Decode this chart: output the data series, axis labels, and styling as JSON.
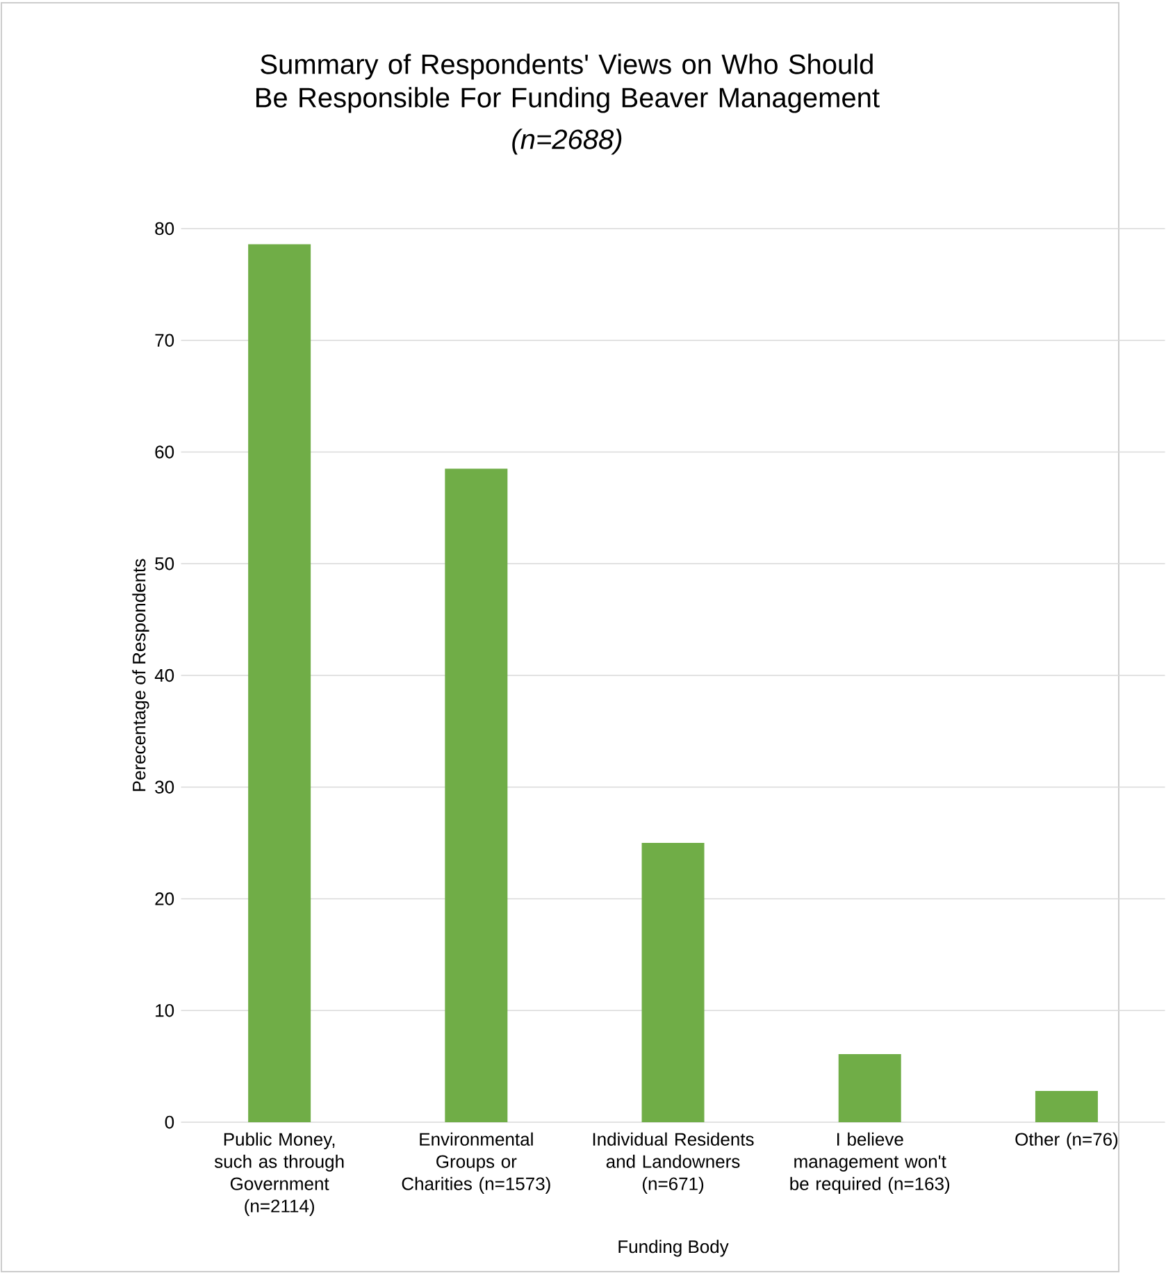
{
  "chart_data": {
    "type": "bar",
    "title": "Summary of Respondents' Views on Who Should Be Responsible For Funding Beaver Management",
    "subtitle": "*(n=2688)*",
    "xlabel": "Funding Body",
    "ylabel": "Perecentage of Respondents",
    "categories": [
      "Public Money, such as through Government (n=2114)",
      "Environmental Groups or Charities (n=1573)",
      "Individual Residents and Landowners (n=671)",
      "I believe management won't be required (n=163)",
      "Other (n=76)"
    ],
    "values": [
      78.6,
      58.5,
      25.0,
      6.1,
      2.8
    ],
    "color": "#70ad47",
    "ylim": [
      0,
      80
    ],
    "yticks": [
      0,
      10,
      20,
      30,
      40,
      50,
      60,
      70,
      80
    ],
    "grid": "y"
  }
}
